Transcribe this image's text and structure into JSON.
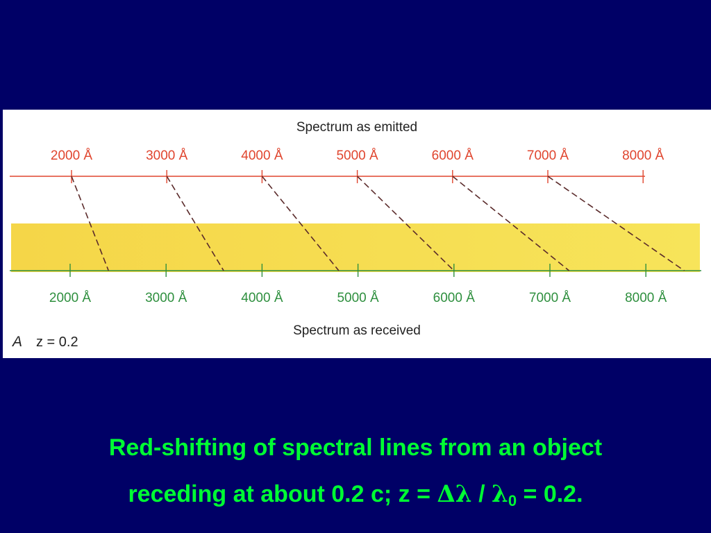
{
  "colors": {
    "background": "#000066",
    "panel": "#ffffff",
    "emitted": "#e0452e",
    "received": "#2e8f3e",
    "band": "#f7e45a",
    "band_left": "#f5d648",
    "dashed": "#5a2a2a",
    "figure_text": "#222222",
    "caption": "#00ff33"
  },
  "diagram": {
    "emitted_title": "Spectrum as emitted",
    "received_title": "Spectrum as received",
    "panel_label_letter": "A",
    "panel_label_z": "z = 0.2",
    "emitted_ticks": [
      "2000 Å",
      "3000 Å",
      "4000 Å",
      "5000 Å",
      "6000 Å",
      "7000 Å",
      "8000 Å"
    ],
    "received_ticks": [
      "2000 Å",
      "3000 Å",
      "4000 Å",
      "5000 Å",
      "6000 Å",
      "7000 Å",
      "8000 Å"
    ],
    "emitted_wavelengths": [
      2000,
      3000,
      4000,
      5000,
      6000,
      7000
    ],
    "redshift_z": 0.2
  },
  "caption": {
    "line1": "Red-shifting of spectral lines from an object",
    "line2_prefix": "receding at about 0.2 c;  z = ",
    "delta_lambda": "Δλ",
    "slash": " / ",
    "lambda": "λ",
    "lambda_sub": "0",
    "line2_suffix": " =  0.2."
  }
}
